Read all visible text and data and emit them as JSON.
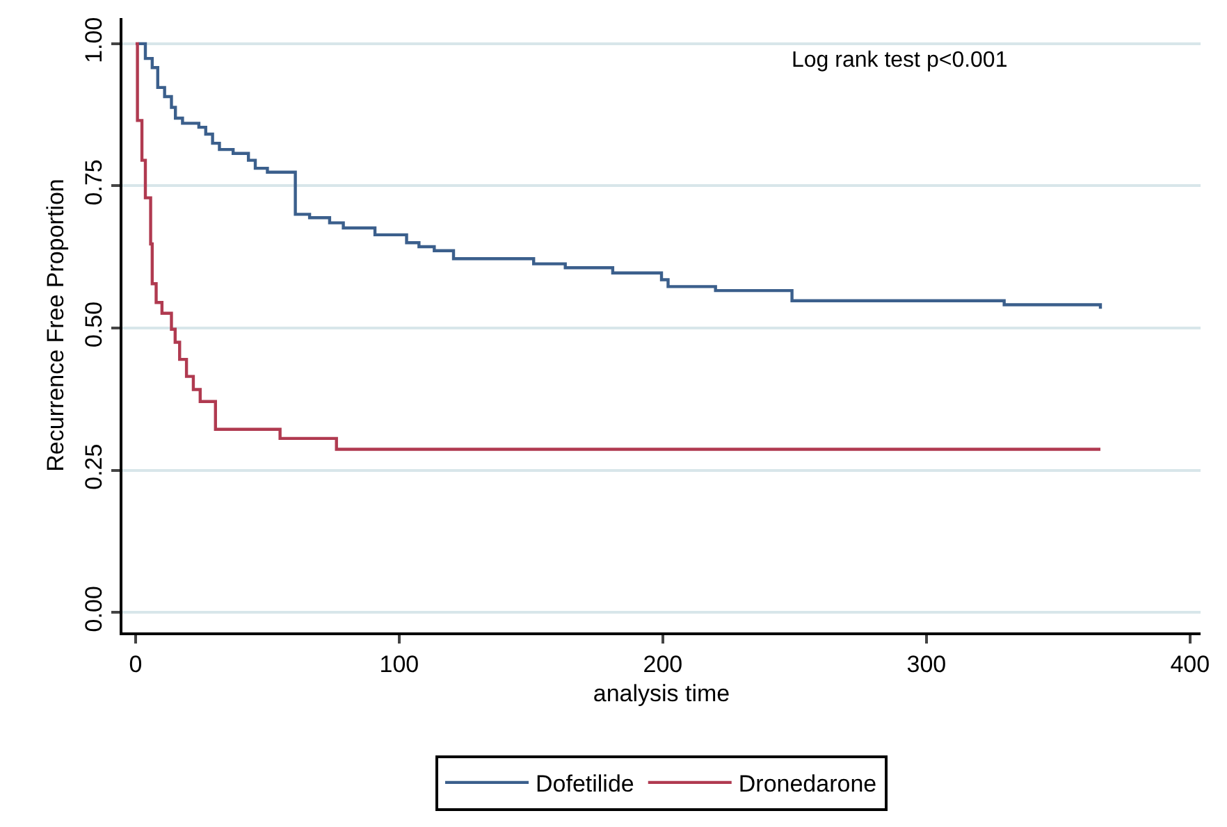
{
  "chart_data": {
    "type": "step",
    "xlabel": "analysis time",
    "ylabel": "Recurrence Free Proportion",
    "annotations": [
      "Log rank test p<0.001"
    ],
    "xlim": [
      -5,
      404
    ],
    "ylim": [
      -0.035,
      1.045
    ],
    "xticks": [
      0,
      100,
      200,
      300,
      400
    ],
    "yticks": [
      {
        "value": 0,
        "label": "0.00"
      },
      {
        "value": 0.25,
        "label": "0.25"
      },
      {
        "value": 0.5,
        "label": "0.50"
      },
      {
        "value": 0.75,
        "label": "0.75"
      },
      {
        "value": 1,
        "label": "1.00"
      }
    ],
    "grid": "y",
    "legend": "bottom",
    "marker": "none",
    "line_style": "solid",
    "series": [
      {
        "name": "Dofetilide",
        "color": "#3b5f8c",
        "x": [
          1,
          3.7,
          6.3,
          8.4,
          11,
          13.6,
          15.1,
          17.8,
          24,
          26.6,
          29.2,
          31.8,
          37,
          42.8,
          45.4,
          50,
          60.6,
          66,
          73.6,
          78.8,
          90.8,
          102.8,
          107.5,
          113.3,
          120.6,
          151,
          163,
          181,
          199.5,
          202,
          220,
          249,
          329.5,
          366
        ],
        "values": [
          1,
          0.974,
          0.958,
          0.923,
          0.907,
          0.888,
          0.869,
          0.86,
          0.853,
          0.841,
          0.825,
          0.814,
          0.807,
          0.795,
          0.781,
          0.774,
          0.7,
          0.694,
          0.685,
          0.676,
          0.664,
          0.65,
          0.643,
          0.636,
          0.622,
          0.613,
          0.606,
          0.597,
          0.585,
          0.573,
          0.566,
          0.548,
          0.541,
          0.534
        ]
      },
      {
        "name": "Dronedarone",
        "color": "#b03a50",
        "x": [
          0,
          0.7,
          2.4,
          3.7,
          5.7,
          6.3,
          7.8,
          10,
          13.6,
          15,
          16.7,
          19.3,
          21.9,
          24.5,
          30.3,
          54.8,
          76.2,
          366
        ],
        "values": [
          1,
          0.865,
          0.795,
          0.729,
          0.648,
          0.578,
          0.545,
          0.526,
          0.498,
          0.475,
          0.445,
          0.415,
          0.392,
          0.371,
          0.322,
          0.306,
          0.287,
          0.287
        ]
      }
    ]
  }
}
